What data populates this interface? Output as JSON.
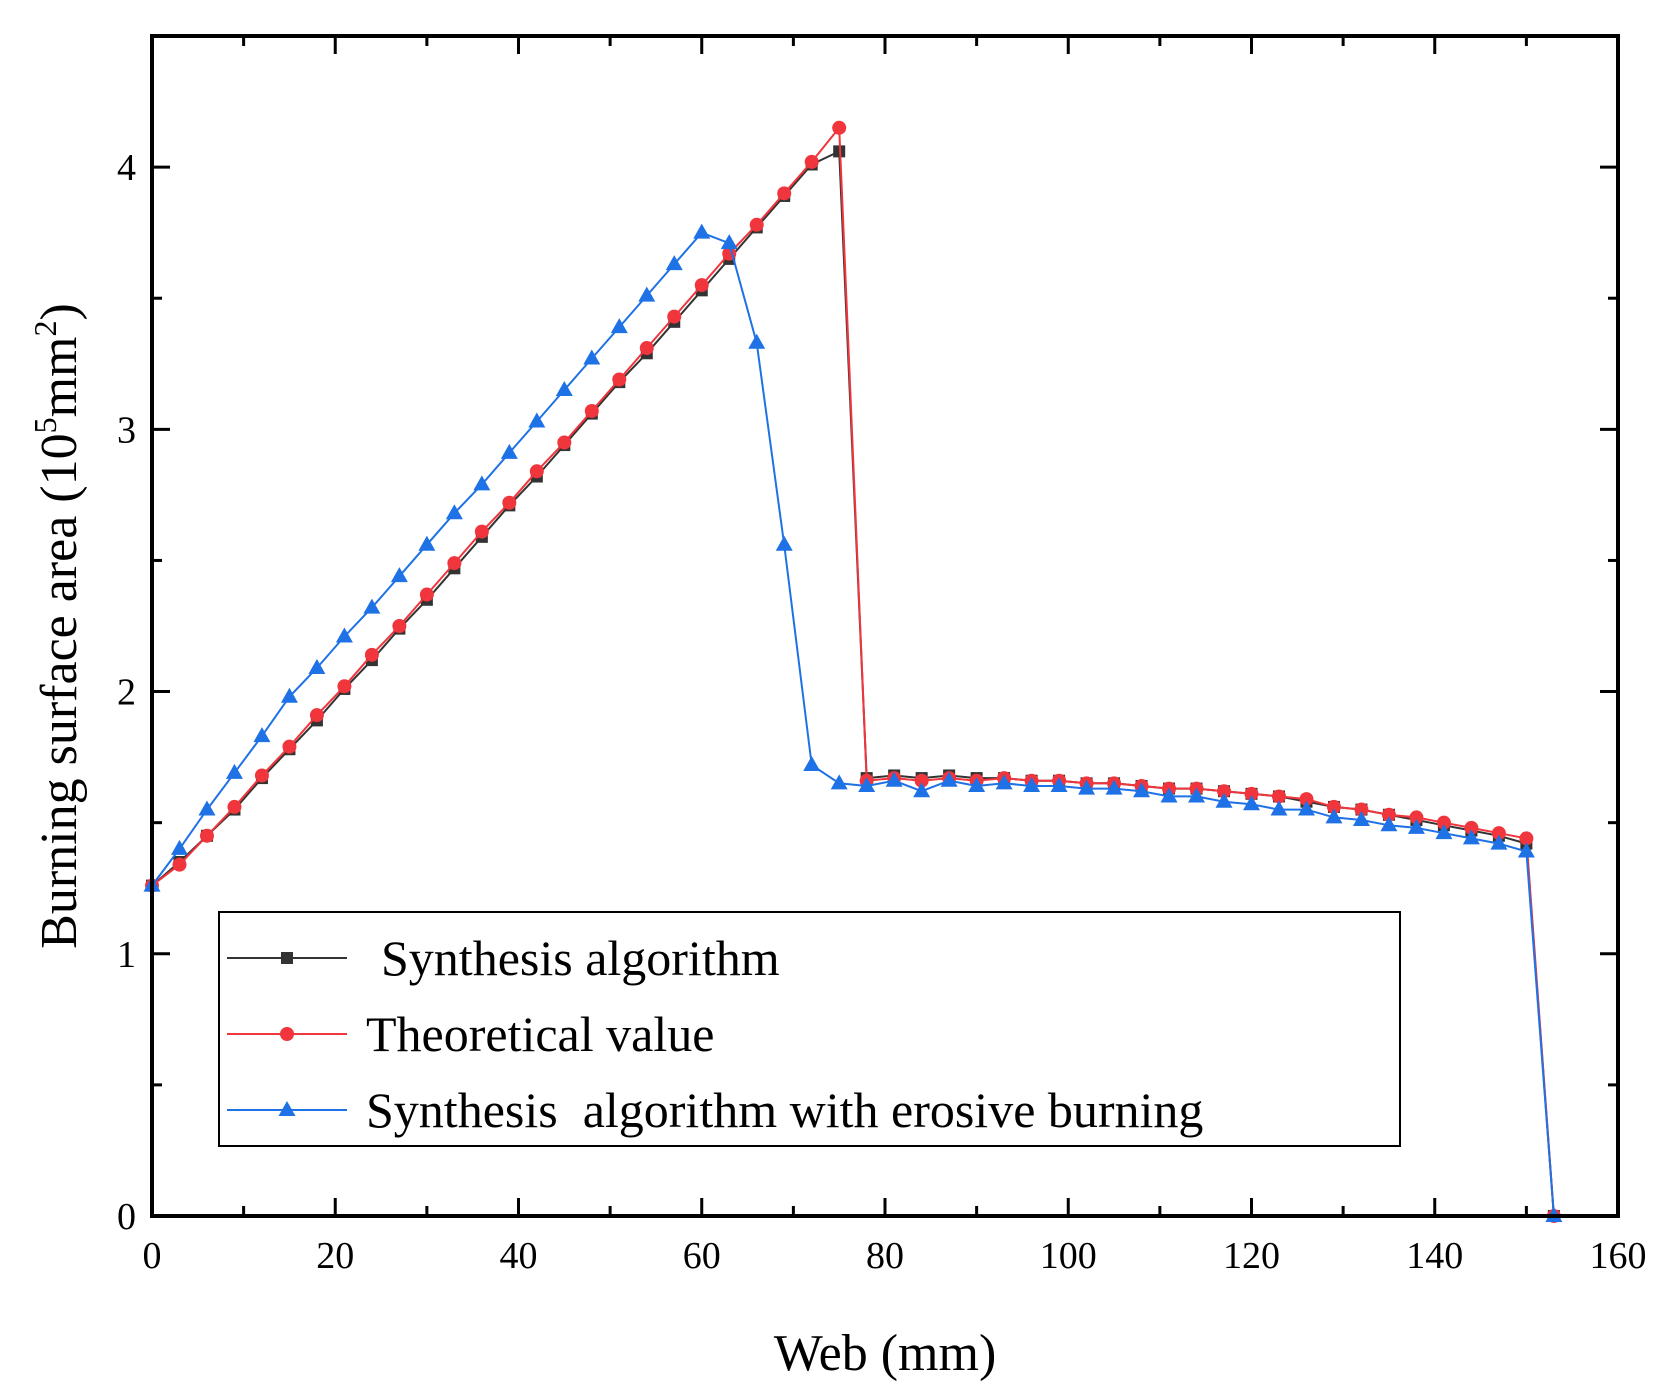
{
  "chart_data": {
    "type": "line",
    "title": "",
    "xlabel": "Web (mm)",
    "ylabel": {
      "prefix": "Burning surface area (10",
      "sup": "5",
      "mid": "mm",
      "sup2": "2",
      "suffix": ")"
    },
    "xlim": [
      0,
      160
    ],
    "ylim": [
      0,
      4.5
    ],
    "xticks": [
      0,
      20,
      40,
      60,
      80,
      100,
      120,
      140,
      160
    ],
    "yticks": [
      0,
      1,
      2,
      3,
      4
    ],
    "grid": false,
    "legend_position": "bottom-left",
    "series": [
      {
        "name": "Synthesis algorithm",
        "color": "#333333",
        "marker": "square",
        "x": [
          0,
          3,
          6,
          9,
          12,
          15,
          18,
          21,
          24,
          27,
          30,
          33,
          36,
          39,
          42,
          45,
          48,
          51,
          54,
          57,
          60,
          63,
          66,
          69,
          72,
          75,
          78,
          81,
          84,
          87,
          90,
          93,
          96,
          99,
          102,
          105,
          108,
          111,
          114,
          117,
          120,
          123,
          126,
          129,
          132,
          135,
          138,
          141,
          144,
          147,
          150,
          153
        ],
        "y": [
          1.26,
          1.35,
          1.45,
          1.55,
          1.67,
          1.78,
          1.89,
          2.01,
          2.12,
          2.24,
          2.35,
          2.47,
          2.59,
          2.71,
          2.82,
          2.94,
          3.06,
          3.18,
          3.29,
          3.41,
          3.53,
          3.65,
          3.77,
          3.89,
          4.01,
          4.06,
          1.67,
          1.68,
          1.67,
          1.68,
          1.67,
          1.67,
          1.66,
          1.66,
          1.65,
          1.65,
          1.64,
          1.63,
          1.63,
          1.62,
          1.61,
          1.6,
          1.58,
          1.56,
          1.55,
          1.53,
          1.51,
          1.49,
          1.47,
          1.45,
          1.42,
          0.0
        ]
      },
      {
        "name": "Theoretical value",
        "color": "#f0353c",
        "marker": "circle",
        "x": [
          0,
          3,
          6,
          9,
          12,
          15,
          18,
          21,
          24,
          27,
          30,
          33,
          36,
          39,
          42,
          45,
          48,
          51,
          54,
          57,
          60,
          63,
          66,
          69,
          72,
          75,
          78,
          81,
          84,
          87,
          90,
          93,
          96,
          99,
          102,
          105,
          108,
          111,
          114,
          117,
          120,
          123,
          126,
          129,
          132,
          135,
          138,
          141,
          144,
          147,
          150,
          153
        ],
        "y": [
          1.26,
          1.34,
          1.45,
          1.56,
          1.68,
          1.79,
          1.91,
          2.02,
          2.14,
          2.25,
          2.37,
          2.49,
          2.61,
          2.72,
          2.84,
          2.95,
          3.07,
          3.19,
          3.31,
          3.43,
          3.55,
          3.67,
          3.78,
          3.9,
          4.02,
          4.15,
          1.66,
          1.67,
          1.66,
          1.67,
          1.66,
          1.67,
          1.66,
          1.66,
          1.65,
          1.65,
          1.64,
          1.63,
          1.63,
          1.62,
          1.61,
          1.6,
          1.59,
          1.56,
          1.55,
          1.53,
          1.52,
          1.5,
          1.48,
          1.46,
          1.44,
          0.0
        ]
      },
      {
        "name": "Synthesis  algorithm with erosive burning",
        "color": "#1f72e6",
        "marker": "triangle",
        "x": [
          0,
          3,
          6,
          9,
          12,
          15,
          18,
          21,
          24,
          27,
          30,
          33,
          36,
          39,
          42,
          45,
          48,
          51,
          54,
          57,
          60,
          63,
          66,
          69,
          72,
          75,
          78,
          81,
          84,
          87,
          90,
          93,
          96,
          99,
          102,
          105,
          108,
          111,
          114,
          117,
          120,
          123,
          126,
          129,
          132,
          135,
          138,
          141,
          144,
          147,
          150,
          153
        ],
        "y": [
          1.26,
          1.4,
          1.55,
          1.69,
          1.83,
          1.98,
          2.09,
          2.21,
          2.32,
          2.44,
          2.56,
          2.68,
          2.79,
          2.91,
          3.03,
          3.15,
          3.27,
          3.39,
          3.51,
          3.63,
          3.75,
          3.71,
          3.33,
          2.56,
          1.72,
          1.65,
          1.64,
          1.66,
          1.62,
          1.66,
          1.64,
          1.65,
          1.64,
          1.64,
          1.63,
          1.63,
          1.62,
          1.6,
          1.6,
          1.58,
          1.57,
          1.55,
          1.55,
          1.52,
          1.51,
          1.49,
          1.48,
          1.46,
          1.44,
          1.42,
          1.39,
          0.0
        ]
      }
    ]
  }
}
